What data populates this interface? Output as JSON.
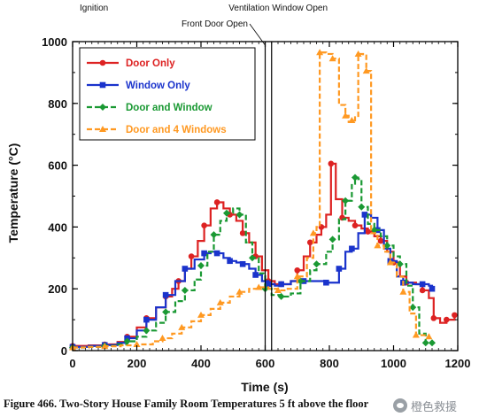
{
  "chart_data": {
    "type": "line",
    "title": "",
    "xlabel": "Time (s)",
    "ylabel": "Temperature (°C)",
    "xlim": [
      0,
      1200
    ],
    "ylim": [
      0,
      1000
    ],
    "x_ticks": [
      0,
      200,
      400,
      600,
      800,
      1000,
      1200
    ],
    "y_ticks": [
      0,
      200,
      400,
      600,
      800,
      1000
    ],
    "grid": false,
    "legend_position": "top-left",
    "events": [
      {
        "label": "Ignition",
        "x": 0
      },
      {
        "label": "Front Door Open",
        "x": 600
      },
      {
        "label": "Ventilation Window Open",
        "x": 620
      }
    ],
    "series": [
      {
        "name": "Door Only",
        "color": "#dd2222",
        "marker": "circle",
        "line": "solid",
        "points": [
          [
            0,
            15
          ],
          [
            50,
            17
          ],
          [
            100,
            20
          ],
          [
            140,
            28
          ],
          [
            170,
            45
          ],
          [
            200,
            75
          ],
          [
            230,
            105
          ],
          [
            260,
            140
          ],
          [
            290,
            175
          ],
          [
            310,
            200
          ],
          [
            330,
            225
          ],
          [
            350,
            265
          ],
          [
            370,
            305
          ],
          [
            390,
            355
          ],
          [
            410,
            405
          ],
          [
            430,
            460
          ],
          [
            450,
            480
          ],
          [
            470,
            460
          ],
          [
            490,
            440
          ],
          [
            510,
            420
          ],
          [
            530,
            380
          ],
          [
            550,
            350
          ],
          [
            570,
            305
          ],
          [
            590,
            260
          ],
          [
            610,
            225
          ],
          [
            630,
            215
          ],
          [
            650,
            215
          ],
          [
            680,
            225
          ],
          [
            700,
            260
          ],
          [
            720,
            305
          ],
          [
            740,
            350
          ],
          [
            760,
            375
          ],
          [
            775,
            400
          ],
          [
            790,
            440
          ],
          [
            805,
            605
          ],
          [
            820,
            490
          ],
          [
            840,
            430
          ],
          [
            860,
            420
          ],
          [
            880,
            405
          ],
          [
            900,
            395
          ],
          [
            920,
            385
          ],
          [
            940,
            370
          ],
          [
            960,
            355
          ],
          [
            980,
            320
          ],
          [
            1000,
            285
          ],
          [
            1020,
            240
          ],
          [
            1040,
            220
          ],
          [
            1070,
            215
          ],
          [
            1090,
            195
          ],
          [
            1110,
            170
          ],
          [
            1125,
            105
          ],
          [
            1145,
            90
          ],
          [
            1165,
            100
          ],
          [
            1190,
            115
          ]
        ]
      },
      {
        "name": "Window Only",
        "color": "#1a33cc",
        "marker": "square",
        "line": "solid",
        "points": [
          [
            0,
            12
          ],
          [
            50,
            15
          ],
          [
            100,
            18
          ],
          [
            140,
            25
          ],
          [
            170,
            40
          ],
          [
            200,
            65
          ],
          [
            230,
            100
          ],
          [
            260,
            140
          ],
          [
            290,
            180
          ],
          [
            320,
            225
          ],
          [
            350,
            265
          ],
          [
            380,
            295
          ],
          [
            410,
            315
          ],
          [
            430,
            320
          ],
          [
            450,
            315
          ],
          [
            470,
            300
          ],
          [
            490,
            290
          ],
          [
            510,
            285
          ],
          [
            530,
            280
          ],
          [
            550,
            265
          ],
          [
            570,
            245
          ],
          [
            590,
            225
          ],
          [
            610,
            215
          ],
          [
            630,
            210
          ],
          [
            650,
            215
          ],
          [
            680,
            225
          ],
          [
            720,
            225
          ],
          [
            760,
            225
          ],
          [
            790,
            220
          ],
          [
            810,
            220
          ],
          [
            830,
            265
          ],
          [
            850,
            320
          ],
          [
            870,
            330
          ],
          [
            890,
            380
          ],
          [
            910,
            440
          ],
          [
            930,
            430
          ],
          [
            950,
            390
          ],
          [
            970,
            330
          ],
          [
            990,
            290
          ],
          [
            1010,
            240
          ],
          [
            1030,
            220
          ],
          [
            1060,
            215
          ],
          [
            1090,
            215
          ],
          [
            1110,
            210
          ],
          [
            1120,
            200
          ]
        ]
      },
      {
        "name": "Door and Window",
        "color": "#1a9933",
        "marker": "diamond",
        "line": "dashed",
        "points": [
          [
            0,
            10
          ],
          [
            50,
            12
          ],
          [
            100,
            15
          ],
          [
            140,
            20
          ],
          [
            170,
            30
          ],
          [
            200,
            45
          ],
          [
            230,
            65
          ],
          [
            260,
            90
          ],
          [
            290,
            125
          ],
          [
            320,
            160
          ],
          [
            350,
            195
          ],
          [
            380,
            230
          ],
          [
            400,
            275
          ],
          [
            420,
            320
          ],
          [
            440,
            375
          ],
          [
            460,
            420
          ],
          [
            480,
            445
          ],
          [
            500,
            460
          ],
          [
            520,
            440
          ],
          [
            540,
            350
          ],
          [
            560,
            300
          ],
          [
            580,
            250
          ],
          [
            600,
            200
          ],
          [
            620,
            180
          ],
          [
            650,
            175
          ],
          [
            680,
            185
          ],
          [
            710,
            225
          ],
          [
            740,
            260
          ],
          [
            760,
            280
          ],
          [
            790,
            320
          ],
          [
            810,
            360
          ],
          [
            830,
            425
          ],
          [
            850,
            485
          ],
          [
            870,
            540
          ],
          [
            880,
            560
          ],
          [
            890,
            555
          ],
          [
            900,
            465
          ],
          [
            920,
            410
          ],
          [
            940,
            390
          ],
          [
            960,
            370
          ],
          [
            980,
            340
          ],
          [
            1000,
            305
          ],
          [
            1020,
            280
          ],
          [
            1040,
            210
          ],
          [
            1060,
            140
          ],
          [
            1080,
            55
          ],
          [
            1100,
            25
          ],
          [
            1120,
            25
          ]
        ]
      },
      {
        "name": "Door and 4 Windows",
        "color": "#ff9922",
        "marker": "triangle",
        "line": "dashed",
        "points": [
          [
            0,
            10
          ],
          [
            50,
            12
          ],
          [
            100,
            14
          ],
          [
            150,
            17
          ],
          [
            200,
            20
          ],
          [
            250,
            30
          ],
          [
            280,
            40
          ],
          [
            310,
            55
          ],
          [
            340,
            75
          ],
          [
            370,
            95
          ],
          [
            400,
            115
          ],
          [
            430,
            135
          ],
          [
            460,
            155
          ],
          [
            490,
            175
          ],
          [
            520,
            190
          ],
          [
            550,
            200
          ],
          [
            580,
            205
          ],
          [
            610,
            200
          ],
          [
            640,
            195
          ],
          [
            670,
            200
          ],
          [
            700,
            240
          ],
          [
            730,
            300
          ],
          [
            750,
            380
          ],
          [
            760,
            400
          ],
          [
            770,
            965
          ],
          [
            790,
            960
          ],
          [
            810,
            945
          ],
          [
            830,
            795
          ],
          [
            850,
            760
          ],
          [
            860,
            740
          ],
          [
            870,
            745
          ],
          [
            880,
            755
          ],
          [
            890,
            960
          ],
          [
            905,
            955
          ],
          [
            915,
            905
          ],
          [
            930,
            380
          ],
          [
            950,
            340
          ],
          [
            970,
            320
          ],
          [
            990,
            285
          ],
          [
            1010,
            240
          ],
          [
            1030,
            190
          ],
          [
            1050,
            120
          ],
          [
            1070,
            50
          ],
          [
            1090,
            50
          ],
          [
            1110,
            45
          ]
        ]
      }
    ]
  },
  "caption": "Figure 466.  Two-Story House Family Room Temperatures 5 ft above the floor",
  "watermark": {
    "text": "橙色救援",
    "icon": "wechat-icon"
  }
}
